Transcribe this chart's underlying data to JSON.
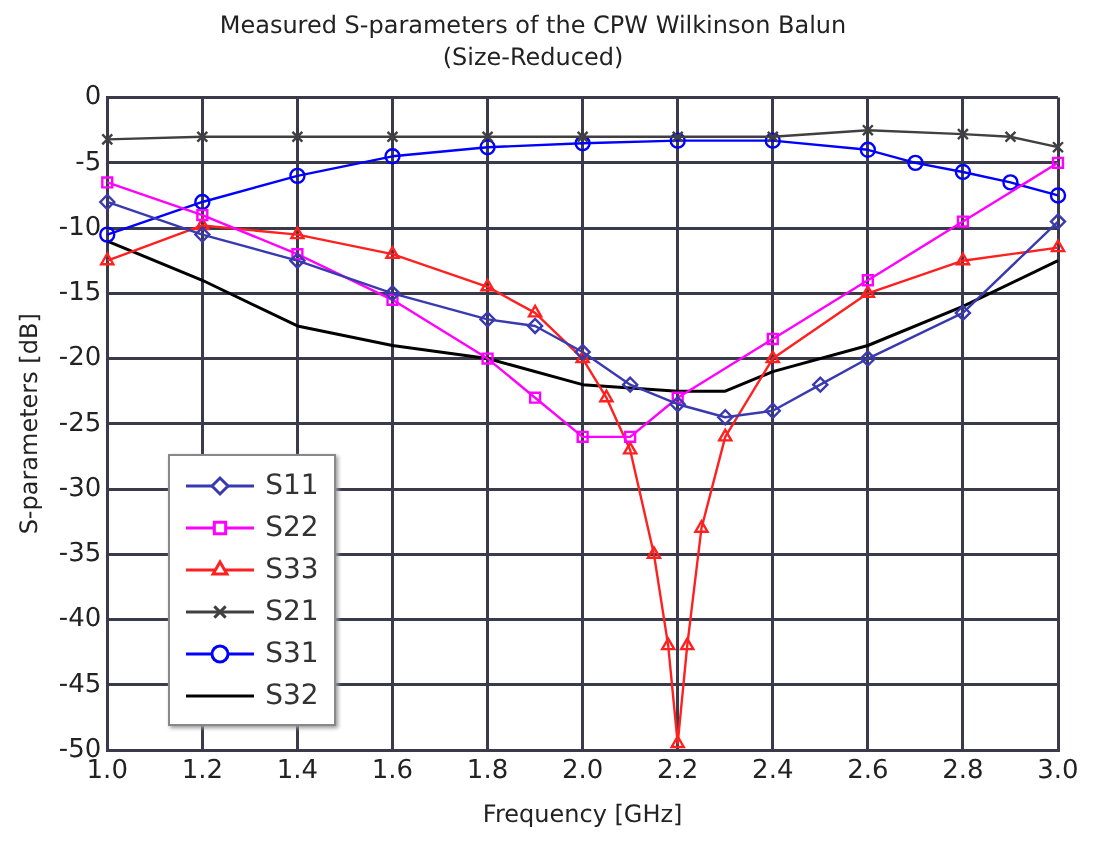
{
  "chart_data": {
    "type": "line",
    "title": "Measured S-parameters of the CPW Wilkinson Balun",
    "subtitle": "(Size-Reduced)",
    "xlabel": "Frequency [GHz]",
    "ylabel": "S-parameters [dB]",
    "xlim": [
      1,
      3
    ],
    "xticks": [
      {
        "value": 1,
        "label": "1.0"
      },
      {
        "value": 1.2,
        "label": "1.2"
      },
      {
        "value": 1.4,
        "label": "1.4"
      },
      {
        "value": 1.6,
        "label": "1.6"
      },
      {
        "value": 1.8,
        "label": "1.8"
      },
      {
        "value": 2,
        "label": "2.0"
      },
      {
        "value": 2.2,
        "label": "2.2"
      },
      {
        "value": 2.4,
        "label": "2.4"
      },
      {
        "value": 2.6,
        "label": "2.6"
      },
      {
        "value": 2.8,
        "label": "2.8"
      },
      {
        "value": 3,
        "label": "3.0"
      }
    ],
    "ylim": [
      -50,
      0
    ],
    "yticks": [
      -50,
      -45,
      -40,
      -35,
      -30,
      -25,
      -20,
      -15,
      -10,
      -5,
      0
    ],
    "grid": true,
    "legend": "bottom left",
    "line_style": "solid",
    "series": [
      {
        "name": "S11",
        "color": "#3a3ab0",
        "marker": "diamond",
        "x": [
          1,
          1.2,
          1.4,
          1.6,
          1.8,
          1.9,
          2,
          2.1,
          2.2,
          2.3,
          2.4,
          2.5,
          2.6,
          2.8,
          3
        ],
        "values": [
          -8,
          -10.5,
          -12.5,
          -15,
          -17,
          -17.5,
          -19.5,
          -22,
          -23.5,
          -24.5,
          -24,
          -22,
          -20,
          -16.5,
          -9.5
        ]
      },
      {
        "name": "S22",
        "color": "#ff00ff",
        "marker": "square",
        "x": [
          1,
          1.2,
          1.4,
          1.6,
          1.8,
          1.9,
          2,
          2.1,
          2.2,
          2.4,
          2.6,
          2.8,
          3
        ],
        "values": [
          -6.5,
          -9,
          -12,
          -15.5,
          -20,
          -23,
          -26,
          -26,
          -23,
          -18.5,
          -14,
          -9.5,
          -5
        ]
      },
      {
        "name": "S33",
        "color": "#ff2020",
        "marker": "triangle",
        "x": [
          1,
          1.2,
          1.4,
          1.6,
          1.8,
          1.9,
          2,
          2.05,
          2.1,
          2.15,
          2.18,
          2.2,
          2.22,
          2.25,
          2.3,
          2.4,
          2.6,
          2.8,
          3
        ],
        "values": [
          -12.5,
          -9.8,
          -10.5,
          -12,
          -14.5,
          -16.5,
          -20,
          -23,
          -27,
          -35,
          -42,
          -49.5,
          -42,
          -33,
          -26,
          -20,
          -15,
          -12.5,
          -11.5
        ]
      },
      {
        "name": "S21",
        "color": "#404040",
        "marker": "cross",
        "x": [
          1,
          1.2,
          1.4,
          1.6,
          1.8,
          2,
          2.2,
          2.4,
          2.6,
          2.8,
          2.9,
          3
        ],
        "values": [
          -3.2,
          -3,
          -3,
          -3,
          -3,
          -3,
          -3,
          -3,
          -2.5,
          -2.8,
          -3,
          -3.8
        ]
      },
      {
        "name": "S31",
        "color": "#0000ff",
        "marker": "circle",
        "x": [
          1,
          1.2,
          1.4,
          1.6,
          1.8,
          2,
          2.2,
          2.4,
          2.6,
          2.7,
          2.8,
          2.9,
          3
        ],
        "values": [
          -10.5,
          -8,
          -6,
          -4.5,
          -3.8,
          -3.5,
          -3.3,
          -3.3,
          -4,
          -5,
          -5.7,
          -6.5,
          -7.5
        ]
      },
      {
        "name": "S32",
        "color": "#000000",
        "marker": "none",
        "x": [
          1,
          1.2,
          1.4,
          1.6,
          1.8,
          2,
          2.2,
          2.3,
          2.4,
          2.6,
          2.8,
          3
        ],
        "values": [
          -11,
          -14,
          -17.5,
          -19,
          -20,
          -22,
          -22.5,
          -22.5,
          -21,
          -19,
          -16,
          -12.5
        ]
      }
    ]
  }
}
